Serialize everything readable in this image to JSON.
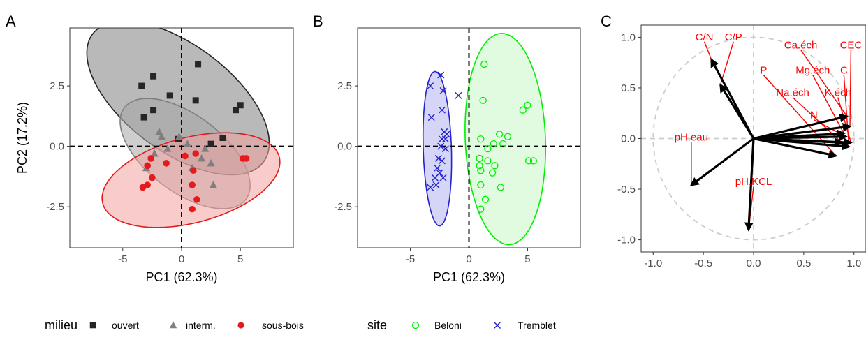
{
  "chart_data": [
    {
      "panel": "A",
      "type": "scatter",
      "xlabel": "PC1 (62.3%)",
      "ylabel": "PC2 (17.2%)",
      "xlim": [
        -9.5,
        9.5
      ],
      "ylim": [
        -4.2,
        4.9
      ],
      "xticks": [
        -5,
        0,
        5
      ],
      "xtick_labels": [
        "-5",
        "0",
        "5"
      ],
      "yticks": [
        -2.5,
        0,
        2.5
      ],
      "ytick_labels": [
        "-2.5",
        "0.0",
        "2.5"
      ],
      "grid": false,
      "reference_lines": "dashed at x=0 and y=0",
      "series": [
        {
          "name": "ouvert",
          "marker": "square",
          "color": "#262626",
          "fill": "#808080",
          "points": [
            [
              -2.4,
              2.9
            ],
            [
              1.4,
              3.4
            ],
            [
              -3.4,
              2.5
            ],
            [
              -1.0,
              2.1
            ],
            [
              1.2,
              1.9
            ],
            [
              -2.4,
              1.5
            ],
            [
              4.6,
              1.5
            ],
            [
              5.0,
              1.7
            ],
            [
              -3.2,
              1.2
            ],
            [
              3.5,
              0.35
            ],
            [
              -0.3,
              0.3
            ],
            [
              2.5,
              0.1
            ]
          ],
          "ellipse": {
            "cx": -0.3,
            "cy": 2.0,
            "rx": 8.0,
            "ry": 2.5,
            "angle": -15
          }
        },
        {
          "name": "interm.",
          "marker": "triangle",
          "color": "#7f7f7f",
          "fill": "#a6a6a6",
          "points": [
            [
              -1.9,
              0.6
            ],
            [
              -1.7,
              0.4
            ],
            [
              -0.2,
              0.4
            ],
            [
              0.5,
              0.1
            ],
            [
              2.0,
              -0.1
            ],
            [
              -1.2,
              -0.1
            ],
            [
              1.7,
              -0.5
            ],
            [
              2.5,
              -0.7
            ],
            [
              -3.0,
              -0.9
            ],
            [
              0.9,
              -0.9
            ],
            [
              2.7,
              -1.6
            ],
            [
              -2.3,
              -0.3
            ]
          ],
          "ellipse": {
            "cx": 0.3,
            "cy": -0.3,
            "rx": 5.7,
            "ry": 1.8,
            "angle": -15
          }
        },
        {
          "name": "sous-bois",
          "marker": "circle",
          "color": "#e41a1c",
          "fill": "#f4a3a3",
          "points": [
            [
              -2.6,
              -0.5
            ],
            [
              0.3,
              -0.4
            ],
            [
              1.2,
              -0.3
            ],
            [
              -2.9,
              -0.8
            ],
            [
              -2.5,
              -1.3
            ],
            [
              1.0,
              -1.0
            ],
            [
              -2.9,
              -1.6
            ],
            [
              -3.3,
              -1.7
            ],
            [
              0.9,
              -1.6
            ],
            [
              5.2,
              -0.5
            ],
            [
              5.5,
              -0.5
            ],
            [
              1.3,
              -2.2
            ],
            [
              0.9,
              -2.6
            ],
            [
              -1.3,
              -0.7
            ]
          ],
          "ellipse": {
            "cx": 0.8,
            "cy": -1.4,
            "rx": 7.6,
            "ry": 1.8,
            "angle": 6
          }
        }
      ]
    },
    {
      "panel": "B",
      "type": "scatter",
      "xlabel": "PC1 (62.3%)",
      "xlim": [
        -9.5,
        9.5
      ],
      "ylim": [
        -4.2,
        4.9
      ],
      "xticks": [
        -5,
        0,
        5
      ],
      "xtick_labels": [
        "-5",
        "0",
        "5"
      ],
      "yticks": [
        -2.5,
        0,
        2.5
      ],
      "ytick_labels": [
        "-2.5",
        "0.0",
        "2.5"
      ],
      "grid": false,
      "reference_lines": "dashed at x=0 and y=0",
      "series": [
        {
          "name": "Beloni",
          "marker": "open-circle",
          "color": "#00ee00",
          "fill": "#c9f7c9",
          "points": [
            [
              1.3,
              3.4
            ],
            [
              1.2,
              1.9
            ],
            [
              4.6,
              1.5
            ],
            [
              5.0,
              1.7
            ],
            [
              2.6,
              0.5
            ],
            [
              1.0,
              0.3
            ],
            [
              2.1,
              0.1
            ],
            [
              3.3,
              0.4
            ],
            [
              2.9,
              0.1
            ],
            [
              1.6,
              -0.1
            ],
            [
              0.9,
              -0.5
            ],
            [
              1.6,
              -0.6
            ],
            [
              2.2,
              -0.8
            ],
            [
              0.9,
              -0.8
            ],
            [
              5.1,
              -0.6
            ],
            [
              5.5,
              -0.6
            ],
            [
              1.0,
              -1.0
            ],
            [
              1.0,
              -1.6
            ],
            [
              2.7,
              -1.7
            ],
            [
              1.4,
              -2.2
            ],
            [
              1.0,
              -2.6
            ],
            [
              2.0,
              -1.1
            ]
          ],
          "ellipse": {
            "cx": 3.1,
            "cy": 0.3,
            "rx": 4.4,
            "ry": 3.4,
            "angle": -80
          }
        },
        {
          "name": "Tremblet",
          "marker": "x",
          "color": "#2323cc",
          "fill": "#b3b3f0",
          "points": [
            [
              -2.4,
              2.95
            ],
            [
              -3.3,
              2.5
            ],
            [
              -2.2,
              2.3
            ],
            [
              -0.9,
              2.1
            ],
            [
              -2.3,
              1.5
            ],
            [
              -3.2,
              1.2
            ],
            [
              -2.1,
              0.6
            ],
            [
              -1.9,
              0.5
            ],
            [
              -2.3,
              0.3
            ],
            [
              -2.0,
              0.3
            ],
            [
              -2.4,
              0.0
            ],
            [
              -2.0,
              -0.1
            ],
            [
              -2.6,
              -0.5
            ],
            [
              -2.3,
              -0.6
            ],
            [
              -2.7,
              -0.9
            ],
            [
              -2.5,
              -1.1
            ],
            [
              -2.9,
              -1.3
            ],
            [
              -2.2,
              -1.3
            ],
            [
              -2.8,
              -1.6
            ],
            [
              -3.3,
              -1.7
            ]
          ],
          "ellipse": {
            "cx": -2.7,
            "cy": -0.1,
            "rx": 3.2,
            "ry": 1.2,
            "angle": -86
          }
        }
      ]
    },
    {
      "panel": "C",
      "type": "biplot-loadings",
      "xlim": [
        -1.12,
        1.12
      ],
      "ylim": [
        -1.12,
        1.12
      ],
      "xticks": [
        -1.0,
        -0.5,
        0.0,
        0.5,
        1.0
      ],
      "xtick_labels": [
        "-1.0",
        "-0.5",
        "0.0",
        "0.5",
        "1.0"
      ],
      "yticks": [
        -1.0,
        -0.5,
        0.0,
        0.5,
        1.0
      ],
      "ytick_labels": [
        "-1.0",
        "-0.5",
        "0.0",
        "0.5",
        "1.0"
      ],
      "grid": false,
      "reference_lines": "dashed gray at x=0 and y=0, dashed unit circle",
      "arrow_color": "#000000",
      "label_color": "#ff0000",
      "vectors": [
        {
          "name": "C/N",
          "x": -0.42,
          "y": 0.78,
          "label_x": -0.49,
          "label_y": 0.97
        },
        {
          "name": "C/P",
          "x": -0.33,
          "y": 0.53,
          "label_x": -0.2,
          "label_y": 0.97
        },
        {
          "name": "Ca.éch",
          "x": 0.93,
          "y": 0.22,
          "label_x": 0.47,
          "label_y": 0.89
        },
        {
          "name": "CEC",
          "x": 0.96,
          "y": 0.12,
          "label_x": 0.97,
          "label_y": 0.89
        },
        {
          "name": "P",
          "x": 0.82,
          "y": -0.17,
          "label_x": 0.1,
          "label_y": 0.64
        },
        {
          "name": "Mg.éch",
          "x": 0.9,
          "y": 0.05,
          "label_x": 0.59,
          "label_y": 0.64
        },
        {
          "name": "C",
          "x": 0.95,
          "y": -0.08,
          "label_x": 0.9,
          "label_y": 0.64
        },
        {
          "name": "Na.éch",
          "x": 0.88,
          "y": -0.04,
          "label_x": 0.39,
          "label_y": 0.42
        },
        {
          "name": "K.éch",
          "x": 0.97,
          "y": -0.04,
          "label_x": 0.84,
          "label_y": 0.42
        },
        {
          "name": "N",
          "x": 0.92,
          "y": 0.02,
          "label_x": 0.6,
          "label_y": 0.2
        },
        {
          "name": "pH.eau",
          "x": -0.62,
          "y": -0.46,
          "label_x": -0.62,
          "label_y": -0.02
        },
        {
          "name": "pH.KCL",
          "x": -0.05,
          "y": -0.9,
          "label_x": 0.0,
          "label_y": -0.46
        }
      ]
    }
  ],
  "panel_letters": {
    "a": "A",
    "b": "B",
    "c": "C"
  },
  "legend": {
    "milieu_title": "milieu",
    "milieu_items": [
      {
        "label": "ouvert",
        "marker": "square",
        "color": "#262626"
      },
      {
        "label": "interm.",
        "marker": "triangle",
        "color": "#7f7f7f"
      },
      {
        "label": "sous-bois",
        "marker": "circle",
        "color": "#e41a1c"
      }
    ],
    "site_title": "site",
    "site_items": [
      {
        "label": "Beloni",
        "marker": "open-circle",
        "color": "#00ee00"
      },
      {
        "label": "Tremblet",
        "marker": "x",
        "color": "#2323cc"
      }
    ]
  }
}
